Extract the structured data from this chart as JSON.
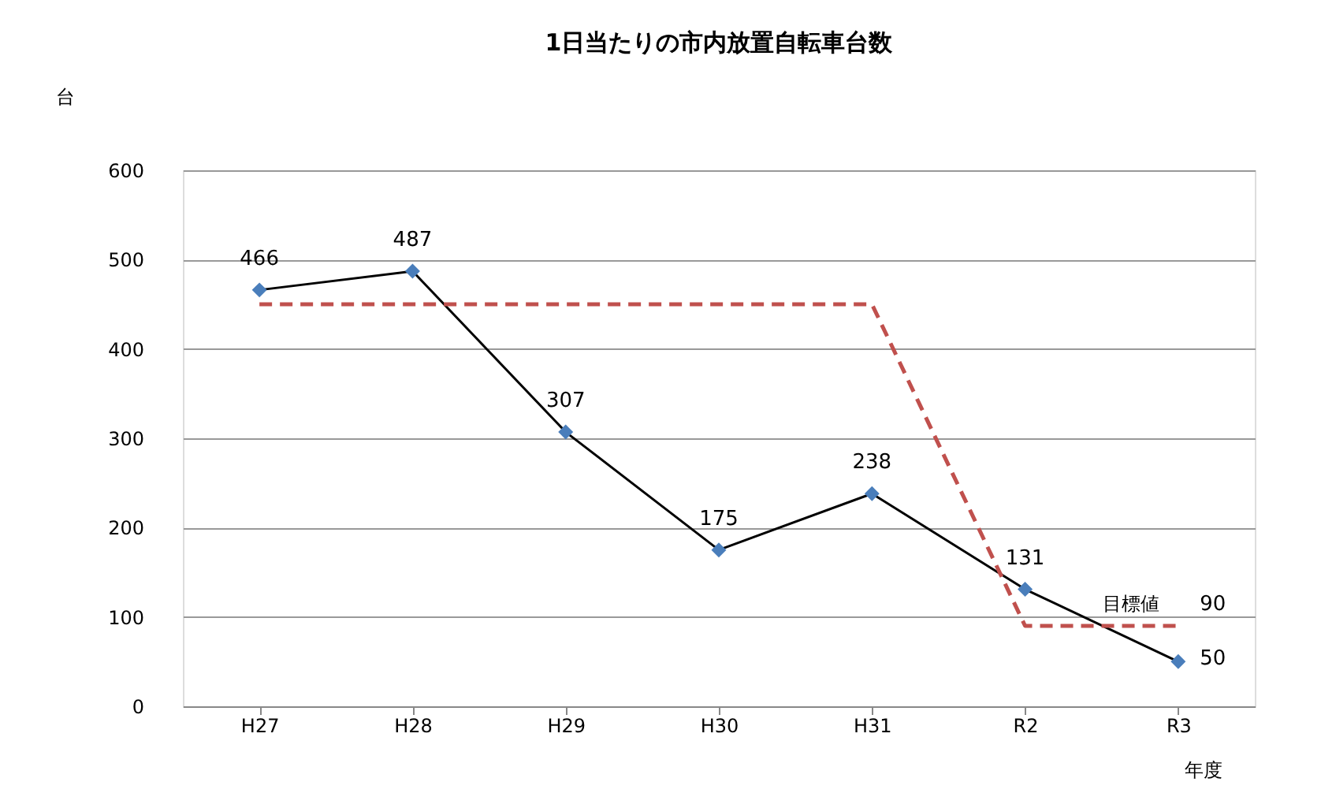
{
  "chart_data": {
    "type": "line",
    "title": "1日当たりの市内放置自転車台数",
    "ylabel": "台",
    "xlabel": "年度",
    "categories": [
      "H27",
      "H28",
      "H29",
      "H30",
      "H31",
      "R2",
      "R3"
    ],
    "series": [
      {
        "color": "#000000",
        "marker": "diamond",
        "values": [
          466,
          487,
          307,
          175,
          238,
          131,
          50
        ],
        "value_labels": [
          "466",
          "487",
          "307",
          "175",
          "238",
          "131",
          "50"
        ]
      },
      {
        "name": "目標値",
        "color": "#c0504d",
        "marker": "none",
        "line_style": "dashed",
        "values": [
          450,
          450,
          450,
          450,
          450,
          90,
          90
        ],
        "value_labels": [
          null,
          null,
          null,
          null,
          null,
          null,
          "90"
        ]
      }
    ],
    "ylim": [
      0,
      600
    ],
    "yticks": [
      0,
      100,
      200,
      300,
      400,
      500,
      600
    ],
    "grid": "y"
  }
}
